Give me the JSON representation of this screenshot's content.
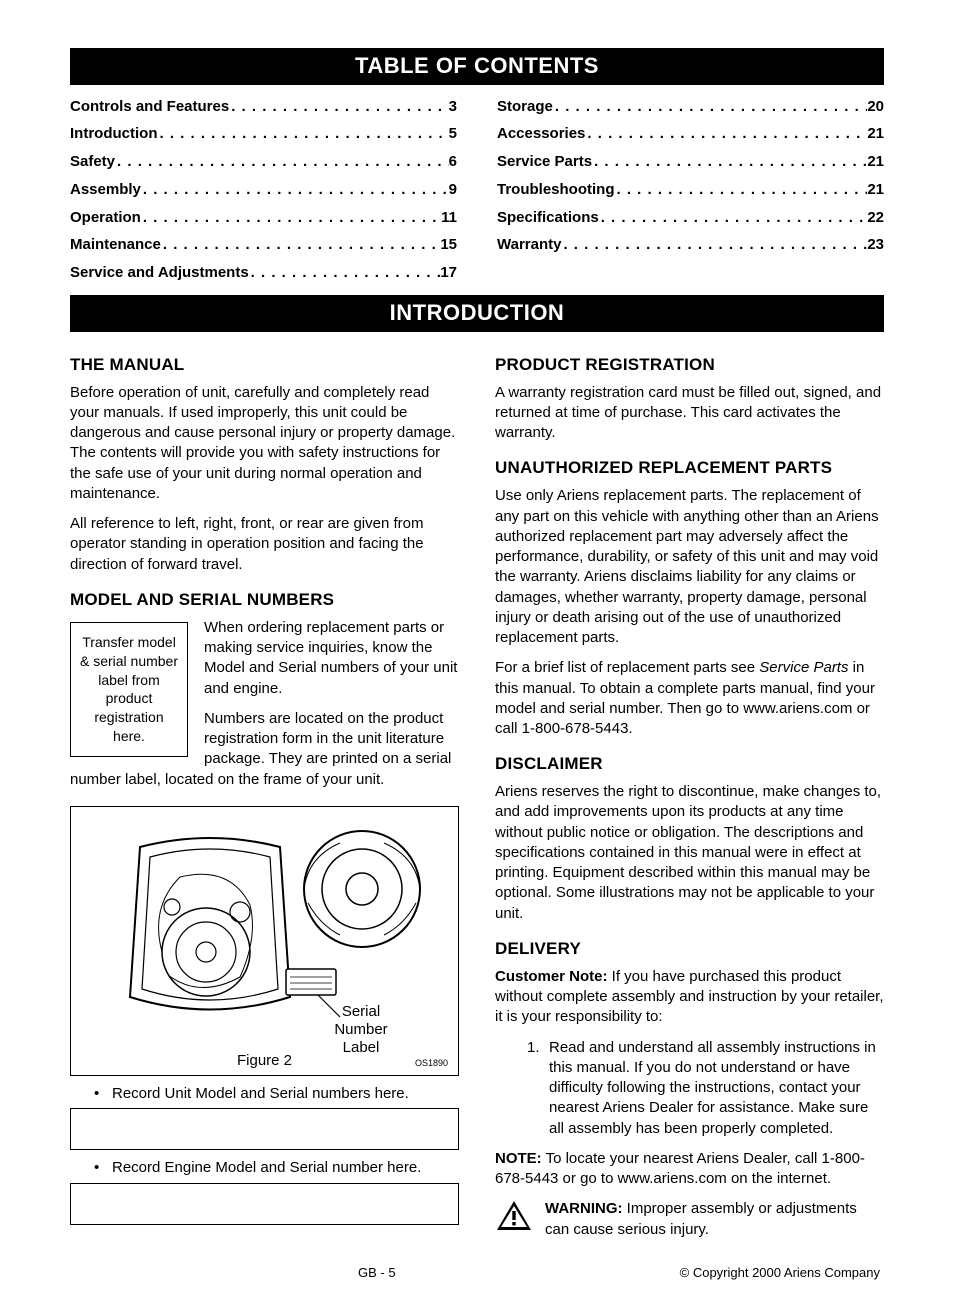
{
  "banners": {
    "toc": "TABLE OF CONTENTS",
    "intro": "INTRODUCTION"
  },
  "toc": [
    {
      "label": "Controls and Features",
      "page": "3"
    },
    {
      "label": "Introduction",
      "page": "5"
    },
    {
      "label": "Safety",
      "page": "6"
    },
    {
      "label": "Assembly",
      "page": "9"
    },
    {
      "label": "Operation",
      "page": "11"
    },
    {
      "label": "Maintenance",
      "page": "15"
    },
    {
      "label": "Service and Adjustments",
      "page": "17"
    },
    {
      "label": "Storage",
      "page": "20"
    },
    {
      "label": "Accessories",
      "page": "21"
    },
    {
      "label": "Service Parts",
      "page": "21"
    },
    {
      "label": "Troubleshooting",
      "page": "21"
    },
    {
      "label": "Specifications",
      "page": "22"
    },
    {
      "label": "Warranty",
      "page": "23"
    }
  ],
  "left": {
    "manual_h": "THE MANUAL",
    "manual_p1": "Before operation of unit, carefully and completely read your manuals. If used improperly, this unit could be dangerous and cause personal injury or property damage. The contents will provide you with safety instructions for the safe use of your unit during normal operation and maintenance.",
    "manual_p2": "All reference to left, right, front, or rear are given from operator standing in operation position and facing the direction of forward travel.",
    "model_h": "MODEL AND SERIAL NUMBERS",
    "label_box": "Transfer model & serial number label from product registration here.",
    "model_p1": "When ordering replacement parts or making service inquiries, know the Model and Serial numbers of your unit and engine.",
    "model_p2": "Numbers are located on the product registration form in the unit literature package. They are printed on a serial number label, located on the frame of your unit.",
    "figure": {
      "callout": "Serial Number Label",
      "caption": "Figure 2",
      "id": "OS1890"
    },
    "rec1": "Record Unit Model and Serial numbers here.",
    "rec2": "Record Engine Model and Serial number here."
  },
  "right": {
    "reg_h": "PRODUCT REGISTRATION",
    "reg_p": "A warranty registration card must be filled out, signed, and returned at time of purchase.  This card activates the warranty.",
    "unauth_h": "UNAUTHORIZED REPLACEMENT PARTS",
    "unauth_p1": "Use only Ariens replacement parts. The replacement of any part on this vehicle with anything other than an Ariens authorized replacement part may adversely affect the performance, durability, or safety of this unit and may void the warranty. Ariens disclaims liability for any claims or damages, whether warranty, property damage, personal injury or death arising out of the use of unauthorized replacement parts.",
    "unauth_p2a": "For a brief list of replacement parts see ",
    "unauth_p2_em": "Service Parts",
    "unauth_p2b": " in this manual. To obtain a complete parts manual, find your model and serial number. Then go to www.ariens.com or call 1-800-678-5443.",
    "disc_h": "DISCLAIMER",
    "disc_p": "Ariens reserves the right to discontinue, make changes to, and add improvements upon its products at any time without public notice or obligation. The descriptions and specifications contained in this manual were in effect at printing. Equipment described within this manual may be optional. Some illustrations may not be applicable to your unit.",
    "del_h": "DELIVERY",
    "del_note_b": "Customer Note:",
    "del_note": " If you have purchased this product without complete assembly and instruction by your retailer, it is your responsibility to:",
    "del_item1": "Read and understand all assembly instructions in this manual. If you do not understand or have difficulty following the instructions, contact your nearest Ariens Dealer for assistance. Make sure all assembly has been properly completed.",
    "del_locate_b": "NOTE:",
    "del_locate": " To locate your nearest Ariens Dealer, call 1-800-678-5443 or go to www.ariens.com on the internet.",
    "warn_b": "WARNING:",
    "warn": " Improper assembly or adjustments can cause serious injury."
  },
  "footer": {
    "page": "GB - 5",
    "copyright": "© Copyright 2000 Ariens Company"
  },
  "colors": {
    "banner_bg": "#000000",
    "banner_fg": "#ffffff",
    "text": "#000000",
    "page_bg": "#ffffff"
  }
}
